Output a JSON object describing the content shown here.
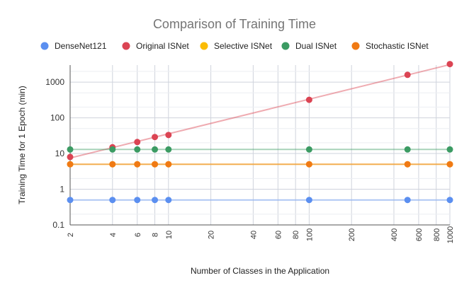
{
  "chart_data": {
    "type": "scatter",
    "title": "Comparison of Training Time",
    "xlabel": "Number of Classes in the Application",
    "ylabel": "Training Time for 1 Epoch (min)",
    "x_scale": "log",
    "y_scale": "log",
    "xlim": [
      2,
      1000
    ],
    "ylim": [
      0.1,
      3000
    ],
    "x_ticks": [
      2,
      4,
      6,
      8,
      10,
      20,
      40,
      60,
      80,
      100,
      200,
      400,
      600,
      800,
      1000
    ],
    "y_ticks": [
      0.1,
      1,
      10,
      100,
      1000
    ],
    "y_tick_labels": [
      "0.1",
      "1",
      "10",
      "100",
      "1000"
    ],
    "grid": true,
    "legend_position": "top",
    "trendlines": true,
    "series": [
      {
        "name": "DenseNet121",
        "color": "#5b8ff0",
        "x": [
          2,
          4,
          6,
          8,
          10,
          100,
          500,
          1000
        ],
        "y": [
          0.5,
          0.5,
          0.5,
          0.5,
          0.5,
          0.5,
          0.5,
          0.5
        ]
      },
      {
        "name": "Original ISNet",
        "color": "#db4453",
        "x": [
          2,
          4,
          6,
          8,
          10,
          100,
          500,
          1000
        ],
        "y": [
          8,
          15,
          21,
          29,
          33,
          320,
          1600,
          3200
        ]
      },
      {
        "name": "Selective ISNet",
        "color": "#fbbc04",
        "x": [
          2,
          4,
          6,
          8,
          10,
          100,
          500,
          1000
        ],
        "y": [
          5,
          5,
          5,
          5,
          5,
          5,
          5,
          5
        ]
      },
      {
        "name": "Dual ISNet",
        "color": "#3b9b63",
        "x": [
          2,
          4,
          6,
          8,
          10,
          100,
          500,
          1000
        ],
        "y": [
          13,
          13,
          13,
          13,
          13,
          13,
          13,
          13
        ]
      },
      {
        "name": "Stochastic ISNet",
        "color": "#f07a14",
        "x": [
          2,
          4,
          6,
          8,
          10,
          100,
          500,
          1000
        ],
        "y": [
          5,
          5,
          5,
          5,
          5,
          5,
          5,
          5
        ]
      }
    ]
  }
}
